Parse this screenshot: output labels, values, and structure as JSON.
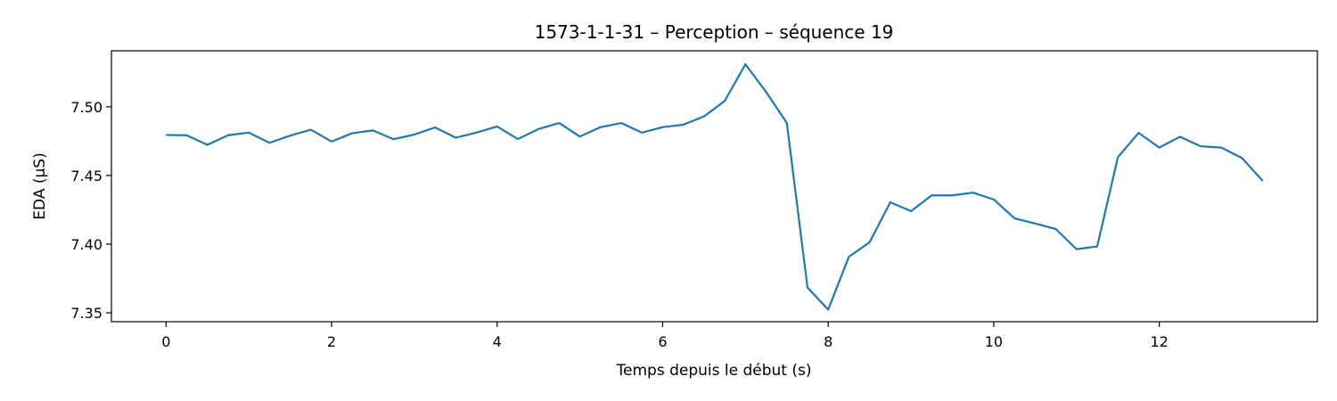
{
  "chart_data": {
    "type": "line",
    "title": "1573-1-1-31 – Perception – séquence 19",
    "xlabel": "Temps depuis le début (s)",
    "ylabel": "EDA (µS)",
    "xlim": [
      -0.66,
      13.91
    ],
    "ylim": [
      7.3435,
      7.5408
    ],
    "xticks": [
      0,
      2,
      4,
      6,
      8,
      10,
      12
    ],
    "xtick_labels": [
      "0",
      "2",
      "4",
      "6",
      "8",
      "10",
      "12"
    ],
    "yticks": [
      7.35,
      7.4,
      7.45,
      7.5
    ],
    "ytick_labels": [
      "7.35",
      "7.40",
      "7.45",
      "7.50"
    ],
    "grid": false,
    "line_color": "#1f77b4",
    "series": [
      {
        "x": [
          0,
          0.25,
          0.5,
          0.75,
          1.0,
          1.25,
          1.5,
          1.75,
          2.0,
          2.25,
          2.5,
          2.75,
          3.0,
          3.25,
          3.5,
          3.75,
          4.0,
          4.25,
          4.5,
          4.75,
          5.0,
          5.25,
          5.5,
          5.75,
          6.0,
          6.25,
          6.5,
          6.75,
          7.0,
          7.25,
          7.5,
          7.75,
          8.0,
          8.25,
          8.5,
          8.75,
          9.0,
          9.25,
          9.5,
          9.75,
          10.0,
          10.25,
          10.5,
          10.75,
          11.0,
          11.25,
          11.5,
          11.75,
          12.0,
          12.25,
          12.5,
          12.75,
          13.0,
          13.25
        ],
        "y": [
          7.4795,
          7.4792,
          7.4723,
          7.4793,
          7.4812,
          7.4738,
          7.479,
          7.4833,
          7.4747,
          7.4808,
          7.4828,
          7.4764,
          7.4798,
          7.485,
          7.4775,
          7.4812,
          7.4857,
          7.4765,
          7.4838,
          7.4882,
          7.4783,
          7.4852,
          7.4882,
          7.4812,
          7.4852,
          7.487,
          7.493,
          7.5043,
          7.531,
          7.5108,
          7.4883,
          7.3683,
          7.3523,
          7.3908,
          7.4013,
          7.4305,
          7.424,
          7.4355,
          7.4355,
          7.4375,
          7.4325,
          7.4188,
          7.415,
          7.411,
          7.3963,
          7.3983,
          7.4633,
          7.481,
          7.4703,
          7.4782,
          7.4713,
          7.4703,
          7.4627,
          7.446
        ]
      }
    ]
  }
}
